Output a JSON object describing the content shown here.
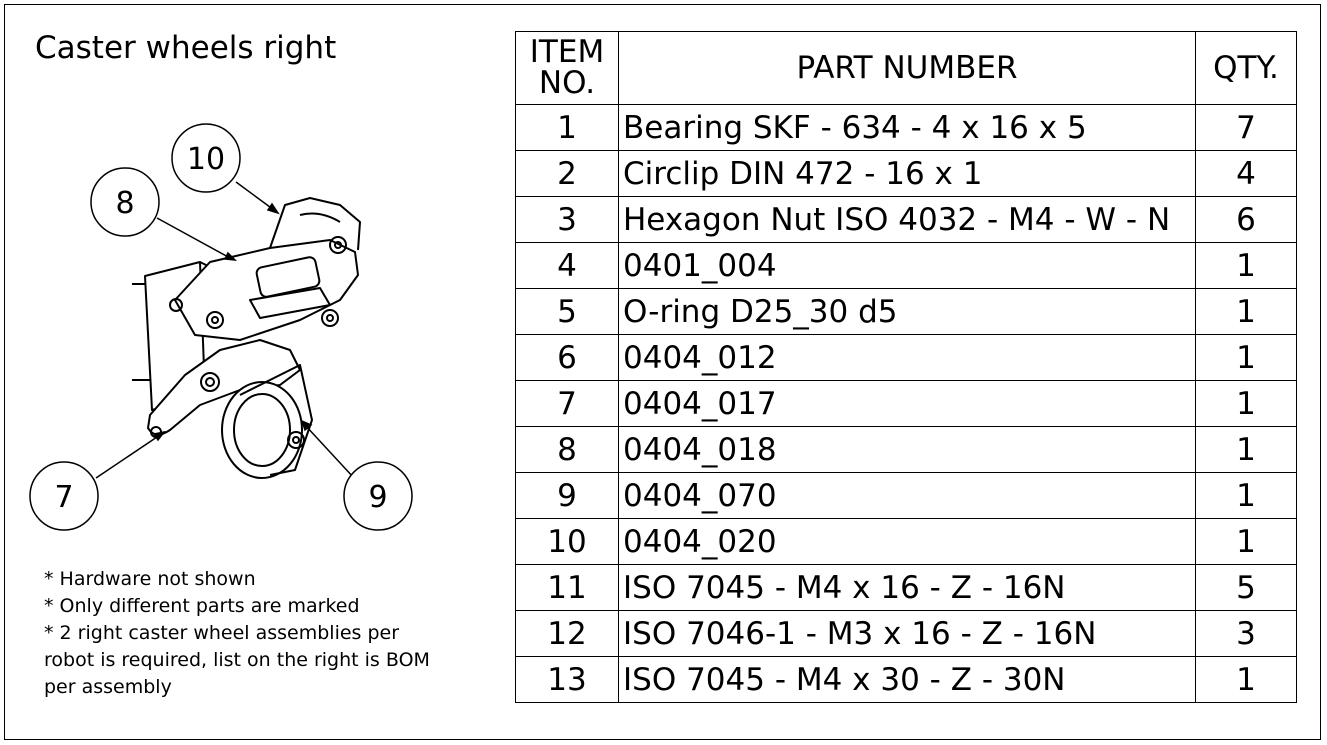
{
  "title": "Caster wheels right",
  "table": {
    "headers": {
      "item": "ITEM\nNO.",
      "part": "PART NUMBER",
      "qty": "QTY."
    },
    "rows": [
      {
        "item": "1",
        "part": "Bearing SKF - 634 - 4 x 16 x 5",
        "qty": "7"
      },
      {
        "item": "2",
        "part": "Circlip DIN 472 - 16 x 1",
        "qty": "4"
      },
      {
        "item": "3",
        "part": "Hexagon Nut ISO 4032 - M4 - W - N",
        "qty": "6"
      },
      {
        "item": "4",
        "part": "0401_004",
        "qty": "1"
      },
      {
        "item": "5",
        "part": "O-ring D25_30 d5",
        "qty": "1"
      },
      {
        "item": "6",
        "part": "0404_012",
        "qty": "1"
      },
      {
        "item": "7",
        "part": "0404_017",
        "qty": "1"
      },
      {
        "item": "8",
        "part": "0404_018",
        "qty": "1"
      },
      {
        "item": "9",
        "part": "0404_070",
        "qty": "1"
      },
      {
        "item": "10",
        "part": "0404_020",
        "qty": "1"
      },
      {
        "item": "11",
        "part": "ISO 7045 - M4 x 16 - Z - 16N",
        "qty": "5"
      },
      {
        "item": "12",
        "part": "ISO 7046-1 - M3 x 16 - Z - 16N",
        "qty": "3"
      },
      {
        "item": "13",
        "part": "ISO 7045 - M4 x 30 - Z - 30N",
        "qty": "1"
      }
    ]
  },
  "balloons": {
    "b10": "10",
    "b8": "8",
    "b7": "7",
    "b9": "9"
  },
  "notes": [
    "* Hardware not shown",
    "* Only different parts are marked",
    "* 2 right caster wheel assemblies per",
    "robot is required, list on the right is BOM",
    "per assembly"
  ]
}
